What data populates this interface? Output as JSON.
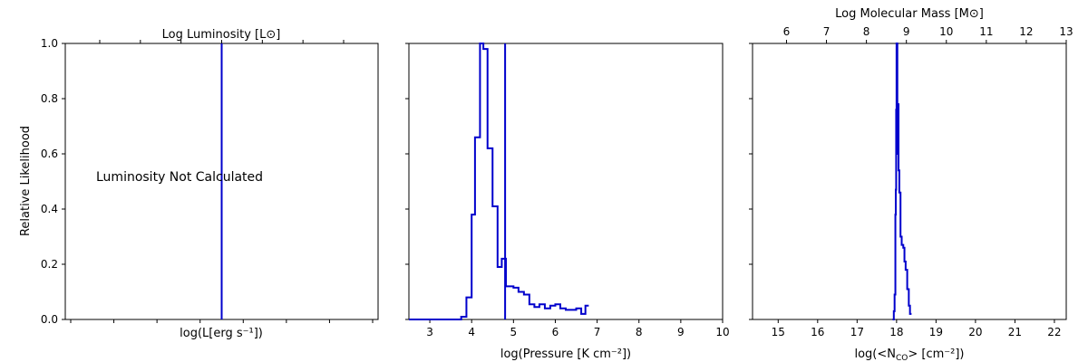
{
  "chart_data": [
    {
      "type": "line",
      "panel": "luminosity",
      "xlabel": "log(L[erg s⁻¹])",
      "ylabel": "Relative Likelihood",
      "top_axis_label": "Log Luminosity  [L⊙]",
      "annotation": "Luminosity Not Calculated",
      "ylim": [
        0,
        1
      ],
      "yticks": [
        "0.0",
        "0.2",
        "0.4",
        "0.6",
        "0.8",
        "1.0"
      ],
      "vline_frac": 0.5,
      "line_color": "#0000cc",
      "grid": false
    },
    {
      "type": "line",
      "panel": "pressure",
      "xlabel": "log(Pressure [K cm⁻²])",
      "xlim": [
        2.5,
        10
      ],
      "xticks": [
        3,
        4,
        5,
        6,
        7,
        8,
        9,
        10
      ],
      "ylim": [
        0,
        1
      ],
      "vline_x": 4.8,
      "series": [
        {
          "values": [
            [
              2.5,
              0.0
            ],
            [
              3.75,
              0.0
            ],
            [
              3.75,
              0.01
            ],
            [
              3.875,
              0.01
            ],
            [
              3.875,
              0.08
            ],
            [
              4.0,
              0.08
            ],
            [
              4.0,
              0.38
            ],
            [
              4.08,
              0.38
            ],
            [
              4.08,
              0.66
            ],
            [
              4.2,
              0.66
            ],
            [
              4.2,
              1.0
            ],
            [
              4.28,
              1.0
            ],
            [
              4.28,
              0.98
            ],
            [
              4.38,
              0.98
            ],
            [
              4.38,
              0.62
            ],
            [
              4.5,
              0.62
            ],
            [
              4.5,
              0.41
            ],
            [
              4.62,
              0.41
            ],
            [
              4.62,
              0.19
            ],
            [
              4.72,
              0.19
            ],
            [
              4.72,
              0.22
            ],
            [
              4.82,
              0.22
            ],
            [
              4.82,
              0.12
            ],
            [
              5.0,
              0.12
            ],
            [
              5.0,
              0.115
            ],
            [
              5.12,
              0.115
            ],
            [
              5.12,
              0.1
            ],
            [
              5.25,
              0.1
            ],
            [
              5.25,
              0.09
            ],
            [
              5.38,
              0.09
            ],
            [
              5.38,
              0.055
            ],
            [
              5.5,
              0.055
            ],
            [
              5.5,
              0.045
            ],
            [
              5.62,
              0.045
            ],
            [
              5.62,
              0.055
            ],
            [
              5.75,
              0.055
            ],
            [
              5.75,
              0.04
            ],
            [
              5.88,
              0.04
            ],
            [
              5.88,
              0.05
            ],
            [
              6.0,
              0.05
            ],
            [
              6.0,
              0.055
            ],
            [
              6.12,
              0.055
            ],
            [
              6.12,
              0.04
            ],
            [
              6.25,
              0.04
            ],
            [
              6.25,
              0.035
            ],
            [
              6.38,
              0.035
            ],
            [
              6.38,
              0.035
            ],
            [
              6.5,
              0.035
            ],
            [
              6.5,
              0.04
            ],
            [
              6.62,
              0.04
            ],
            [
              6.62,
              0.02
            ],
            [
              6.72,
              0.02
            ],
            [
              6.72,
              0.05
            ],
            [
              6.8,
              0.05
            ]
          ]
        }
      ],
      "line_color": "#0000cc",
      "grid": false
    },
    {
      "type": "line",
      "panel": "column_density",
      "xlabel": "log(<N",
      "xlabel_sub": "CO",
      "xlabel_end": "> [cm⁻²])",
      "top_axis_label": "Log Molecular Mass [M⊙]",
      "xlim": [
        14.35,
        22.3
      ],
      "xticks": [
        15,
        16,
        17,
        18,
        19,
        20,
        21,
        22
      ],
      "top_xlim": [
        5.15,
        13.0
      ],
      "top_xticks": [
        6,
        7,
        8,
        9,
        10,
        11,
        12,
        13
      ],
      "ylim": [
        0,
        1
      ],
      "series": [
        {
          "values": [
            [
              17.9,
              0.0
            ],
            [
              17.93,
              0.0
            ],
            [
              17.93,
              0.03
            ],
            [
              17.95,
              0.03
            ],
            [
              17.95,
              0.09
            ],
            [
              17.97,
              0.09
            ],
            [
              17.97,
              0.38
            ],
            [
              17.98,
              0.38
            ],
            [
              17.98,
              0.47
            ],
            [
              17.99,
              0.47
            ],
            [
              17.99,
              0.76
            ],
            [
              18.0,
              0.76
            ],
            [
              18.0,
              1.0
            ],
            [
              18.02,
              1.0
            ],
            [
              18.02,
              0.6
            ],
            [
              18.03,
              0.6
            ],
            [
              18.03,
              0.78
            ],
            [
              18.05,
              0.78
            ],
            [
              18.05,
              0.54
            ],
            [
              18.07,
              0.54
            ],
            [
              18.07,
              0.46
            ],
            [
              18.1,
              0.46
            ],
            [
              18.1,
              0.3
            ],
            [
              18.13,
              0.3
            ],
            [
              18.13,
              0.27
            ],
            [
              18.17,
              0.27
            ],
            [
              18.17,
              0.26
            ],
            [
              18.2,
              0.26
            ],
            [
              18.2,
              0.21
            ],
            [
              18.23,
              0.21
            ],
            [
              18.23,
              0.18
            ],
            [
              18.27,
              0.18
            ],
            [
              18.27,
              0.11
            ],
            [
              18.31,
              0.11
            ],
            [
              18.31,
              0.05
            ],
            [
              18.34,
              0.05
            ],
            [
              18.34,
              0.02
            ],
            [
              18.38,
              0.02
            ]
          ]
        }
      ],
      "line_color": "#0000cc",
      "grid": false
    }
  ]
}
